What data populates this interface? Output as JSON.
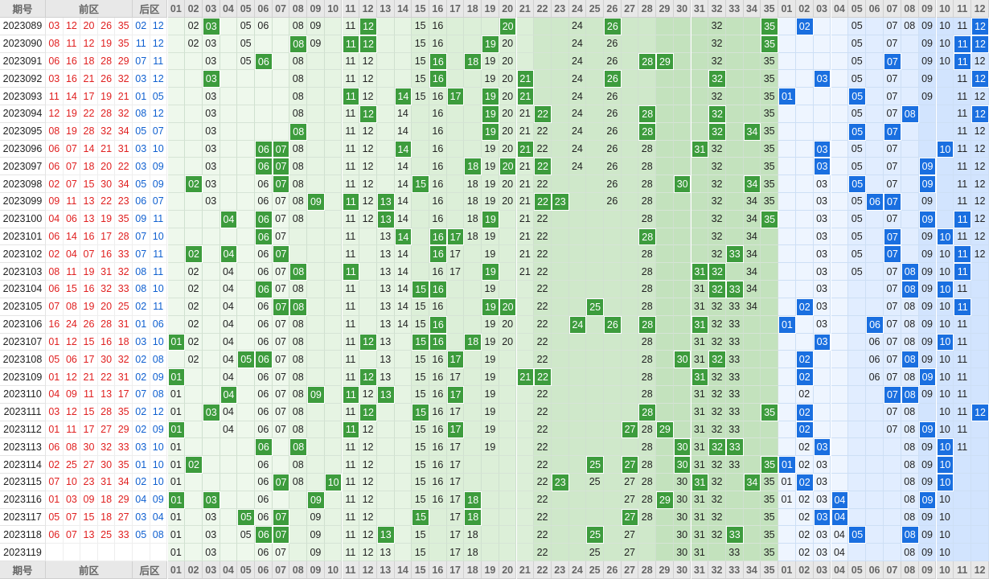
{
  "header": {
    "issue": "期号",
    "front": "前区",
    "back": "后区"
  },
  "front_columns": [
    "01",
    "02",
    "03",
    "04",
    "05",
    "06",
    "07",
    "08",
    "09",
    "10",
    "11",
    "12",
    "13",
    "14",
    "15",
    "16",
    "17",
    "18",
    "19",
    "20",
    "21",
    "22",
    "23",
    "24",
    "25",
    "26",
    "27",
    "28",
    "29",
    "30",
    "31",
    "32",
    "33",
    "34",
    "35"
  ],
  "back_columns": [
    "01",
    "02",
    "03",
    "04",
    "05",
    "06",
    "07",
    "08",
    "09",
    "10",
    "11",
    "12"
  ],
  "rows": [
    {
      "issue": "2023089",
      "front": [
        "03",
        "12",
        "20",
        "26",
        "35"
      ],
      "back": [
        "02",
        "12"
      ],
      "front_grid": [
        "02",
        "03",
        "05",
        "06",
        "08",
        "09",
        "11",
        "12",
        "15",
        "16",
        "20",
        "24",
        "26",
        "32",
        "35"
      ],
      "back_grid": [
        "02",
        "05",
        "07",
        "08",
        "09",
        "10",
        "11",
        "12"
      ]
    },
    {
      "issue": "2023090",
      "front": [
        "08",
        "11",
        "12",
        "19",
        "35"
      ],
      "back": [
        "11",
        "12"
      ],
      "front_grid": [
        "02",
        "03",
        "05",
        "08",
        "09",
        "11",
        "12",
        "15",
        "16",
        "19",
        "20",
        "24",
        "26",
        "32",
        "35"
      ],
      "back_grid": [
        "05",
        "07",
        "09",
        "10",
        "11",
        "12"
      ]
    },
    {
      "issue": "2023091",
      "front": [
        "06",
        "16",
        "18",
        "28",
        "29"
      ],
      "back": [
        "07",
        "11"
      ],
      "front_grid": [
        "03",
        "05",
        "06",
        "08",
        "11",
        "12",
        "15",
        "16",
        "18",
        "19",
        "20",
        "24",
        "26",
        "28",
        "29",
        "32",
        "35"
      ],
      "back_grid": [
        "05",
        "07",
        "09",
        "10",
        "11",
        "12"
      ]
    },
    {
      "issue": "2023092",
      "front": [
        "03",
        "16",
        "21",
        "26",
        "32"
      ],
      "back": [
        "03",
        "12"
      ],
      "front_grid": [
        "03",
        "08",
        "11",
        "12",
        "15",
        "16",
        "19",
        "20",
        "21",
        "24",
        "26",
        "32",
        "35"
      ],
      "back_grid": [
        "03",
        "05",
        "07",
        "09",
        "11",
        "12"
      ]
    },
    {
      "issue": "2023093",
      "front": [
        "11",
        "14",
        "17",
        "19",
        "21"
      ],
      "back": [
        "01",
        "05"
      ],
      "front_grid": [
        "03",
        "08",
        "11",
        "12",
        "14",
        "15",
        "16",
        "17",
        "19",
        "20",
        "21",
        "24",
        "26",
        "32",
        "35"
      ],
      "back_grid": [
        "01",
        "05",
        "07",
        "09",
        "11",
        "12"
      ]
    },
    {
      "issue": "2023094",
      "front": [
        "12",
        "19",
        "22",
        "28",
        "32"
      ],
      "back": [
        "08",
        "12"
      ],
      "front_grid": [
        "03",
        "08",
        "11",
        "12",
        "14",
        "16",
        "19",
        "20",
        "21",
        "22",
        "24",
        "26",
        "28",
        "32",
        "35"
      ],
      "back_grid": [
        "05",
        "07",
        "08",
        "11",
        "12"
      ]
    },
    {
      "issue": "2023095",
      "front": [
        "08",
        "19",
        "28",
        "32",
        "34"
      ],
      "back": [
        "05",
        "07"
      ],
      "front_grid": [
        "03",
        "08",
        "11",
        "12",
        "14",
        "16",
        "19",
        "20",
        "21",
        "22",
        "24",
        "26",
        "28",
        "32",
        "34",
        "35"
      ],
      "back_grid": [
        "05",
        "07",
        "11",
        "12"
      ]
    },
    {
      "issue": "2023096",
      "front": [
        "06",
        "07",
        "14",
        "21",
        "31"
      ],
      "back": [
        "03",
        "10"
      ],
      "front_grid": [
        "03",
        "06",
        "07",
        "08",
        "11",
        "12",
        "14",
        "16",
        "19",
        "20",
        "21",
        "22",
        "24",
        "26",
        "28",
        "31",
        "32",
        "35"
      ],
      "back_grid": [
        "03",
        "05",
        "07",
        "10",
        "11",
        "12"
      ]
    },
    {
      "issue": "2023097",
      "front": [
        "06",
        "07",
        "18",
        "20",
        "22"
      ],
      "back": [
        "03",
        "09"
      ],
      "front_grid": [
        "03",
        "06",
        "07",
        "08",
        "11",
        "12",
        "14",
        "16",
        "18",
        "19",
        "20",
        "21",
        "22",
        "24",
        "26",
        "28",
        "32",
        "35"
      ],
      "back_grid": [
        "03",
        "05",
        "07",
        "09",
        "11",
        "12"
      ]
    },
    {
      "issue": "2023098",
      "front": [
        "02",
        "07",
        "15",
        "30",
        "34"
      ],
      "back": [
        "05",
        "09"
      ],
      "front_grid": [
        "02",
        "03",
        "06",
        "07",
        "08",
        "11",
        "12",
        "14",
        "15",
        "16",
        "18",
        "19",
        "20",
        "21",
        "22",
        "26",
        "28",
        "30",
        "32",
        "34",
        "35"
      ],
      "back_grid": [
        "03",
        "05",
        "07",
        "09",
        "11",
        "12"
      ]
    },
    {
      "issue": "2023099",
      "front": [
        "09",
        "11",
        "13",
        "22",
        "23"
      ],
      "back": [
        "06",
        "07"
      ],
      "front_grid": [
        "03",
        "06",
        "07",
        "08",
        "09",
        "11",
        "12",
        "13",
        "14",
        "16",
        "18",
        "19",
        "20",
        "21",
        "22",
        "23",
        "26",
        "28",
        "32",
        "34",
        "35"
      ],
      "back_grid": [
        "03",
        "05",
        "06",
        "07",
        "09",
        "11",
        "12"
      ]
    },
    {
      "issue": "2023100",
      "front": [
        "04",
        "06",
        "13",
        "19",
        "35"
      ],
      "back": [
        "09",
        "11"
      ],
      "front_grid": [
        "04",
        "06",
        "07",
        "08",
        "11",
        "12",
        "13",
        "14",
        "16",
        "18",
        "19",
        "21",
        "22",
        "28",
        "32",
        "34",
        "35"
      ],
      "back_grid": [
        "03",
        "05",
        "07",
        "09",
        "11",
        "12"
      ]
    },
    {
      "issue": "2023101",
      "front": [
        "06",
        "14",
        "16",
        "17",
        "28"
      ],
      "back": [
        "07",
        "10"
      ],
      "front_grid": [
        "06",
        "07",
        "11",
        "13",
        "14",
        "16",
        "17",
        "18",
        "19",
        "21",
        "22",
        "28",
        "32",
        "34"
      ],
      "back_grid": [
        "03",
        "05",
        "07",
        "09",
        "10",
        "11",
        "12"
      ]
    },
    {
      "issue": "2023102",
      "front": [
        "02",
        "04",
        "07",
        "16",
        "33"
      ],
      "back": [
        "07",
        "11"
      ],
      "front_grid": [
        "02",
        "04",
        "06",
        "07",
        "11",
        "13",
        "14",
        "16",
        "17",
        "19",
        "21",
        "22",
        "28",
        "32",
        "33",
        "34"
      ],
      "back_grid": [
        "03",
        "05",
        "07",
        "09",
        "10",
        "11",
        "12"
      ]
    },
    {
      "issue": "2023103",
      "front": [
        "08",
        "11",
        "19",
        "31",
        "32"
      ],
      "back": [
        "08",
        "11"
      ],
      "front_grid": [
        "02",
        "04",
        "06",
        "07",
        "08",
        "11",
        "13",
        "14",
        "16",
        "17",
        "19",
        "21",
        "22",
        "28",
        "31",
        "32",
        "34"
      ],
      "back_grid": [
        "03",
        "05",
        "07",
        "08",
        "09",
        "10",
        "11"
      ]
    },
    {
      "issue": "2023104",
      "front": [
        "06",
        "15",
        "16",
        "32",
        "33"
      ],
      "back": [
        "08",
        "10"
      ],
      "front_grid": [
        "02",
        "04",
        "06",
        "07",
        "08",
        "11",
        "13",
        "14",
        "15",
        "16",
        "19",
        "22",
        "28",
        "31",
        "32",
        "33",
        "34"
      ],
      "back_grid": [
        "03",
        "07",
        "08",
        "09",
        "10",
        "11"
      ]
    },
    {
      "issue": "2023105",
      "front": [
        "07",
        "08",
        "19",
        "20",
        "25"
      ],
      "back": [
        "02",
        "11"
      ],
      "front_grid": [
        "02",
        "04",
        "06",
        "07",
        "08",
        "11",
        "13",
        "14",
        "15",
        "16",
        "19",
        "20",
        "22",
        "25",
        "28",
        "31",
        "32",
        "33",
        "34"
      ],
      "back_grid": [
        "02",
        "03",
        "07",
        "08",
        "09",
        "10",
        "11"
      ]
    },
    {
      "issue": "2023106",
      "front": [
        "16",
        "24",
        "26",
        "28",
        "31"
      ],
      "back": [
        "01",
        "06"
      ],
      "front_grid": [
        "02",
        "04",
        "06",
        "07",
        "08",
        "11",
        "13",
        "14",
        "15",
        "16",
        "19",
        "20",
        "22",
        "24",
        "26",
        "28",
        "31",
        "32",
        "33"
      ],
      "back_grid": [
        "01",
        "03",
        "06",
        "07",
        "08",
        "09",
        "10",
        "11"
      ]
    },
    {
      "issue": "2023107",
      "front": [
        "01",
        "12",
        "15",
        "16",
        "18"
      ],
      "back": [
        "03",
        "10"
      ],
      "front_grid": [
        "01",
        "02",
        "04",
        "06",
        "07",
        "08",
        "11",
        "12",
        "13",
        "15",
        "16",
        "18",
        "19",
        "20",
        "22",
        "28",
        "31",
        "32",
        "33"
      ],
      "back_grid": [
        "03",
        "06",
        "07",
        "08",
        "09",
        "10",
        "11"
      ]
    },
    {
      "issue": "2023108",
      "front": [
        "05",
        "06",
        "17",
        "30",
        "32"
      ],
      "back": [
        "02",
        "08"
      ],
      "front_grid": [
        "02",
        "04",
        "05",
        "06",
        "07",
        "08",
        "11",
        "13",
        "15",
        "16",
        "17",
        "19",
        "22",
        "28",
        "30",
        "31",
        "32",
        "33"
      ],
      "back_grid": [
        "02",
        "06",
        "07",
        "08",
        "09",
        "10",
        "11"
      ]
    },
    {
      "issue": "2023109",
      "front": [
        "01",
        "12",
        "21",
        "22",
        "31"
      ],
      "back": [
        "02",
        "09"
      ],
      "front_grid": [
        "01",
        "04",
        "06",
        "07",
        "08",
        "11",
        "12",
        "13",
        "15",
        "16",
        "17",
        "19",
        "21",
        "22",
        "28",
        "31",
        "32",
        "33"
      ],
      "back_grid": [
        "02",
        "06",
        "07",
        "08",
        "09",
        "10",
        "11"
      ]
    },
    {
      "issue": "2023110",
      "front": [
        "04",
        "09",
        "11",
        "13",
        "17"
      ],
      "back": [
        "07",
        "08"
      ],
      "front_grid": [
        "01",
        "04",
        "06",
        "07",
        "08",
        "09",
        "11",
        "12",
        "13",
        "15",
        "16",
        "17",
        "19",
        "22",
        "28",
        "31",
        "32",
        "33"
      ],
      "back_grid": [
        "02",
        "07",
        "08",
        "09",
        "10",
        "11"
      ]
    },
    {
      "issue": "2023111",
      "front": [
        "03",
        "12",
        "15",
        "28",
        "35"
      ],
      "back": [
        "02",
        "12"
      ],
      "front_grid": [
        "01",
        "03",
        "04",
        "06",
        "07",
        "08",
        "11",
        "12",
        "15",
        "16",
        "17",
        "19",
        "22",
        "28",
        "31",
        "32",
        "33",
        "35"
      ],
      "back_grid": [
        "02",
        "07",
        "08",
        "10",
        "11",
        "12"
      ]
    },
    {
      "issue": "2023112",
      "front": [
        "01",
        "11",
        "17",
        "27",
        "29"
      ],
      "back": [
        "02",
        "09"
      ],
      "front_grid": [
        "01",
        "04",
        "06",
        "07",
        "08",
        "11",
        "12",
        "15",
        "16",
        "17",
        "19",
        "22",
        "27",
        "28",
        "29",
        "31",
        "32",
        "33"
      ],
      "back_grid": [
        "02",
        "07",
        "08",
        "09",
        "10",
        "11"
      ]
    },
    {
      "issue": "2023113",
      "front": [
        "06",
        "08",
        "30",
        "32",
        "33"
      ],
      "back": [
        "03",
        "10"
      ],
      "front_grid": [
        "01",
        "06",
        "08",
        "11",
        "12",
        "15",
        "16",
        "17",
        "19",
        "22",
        "28",
        "30",
        "31",
        "32",
        "33"
      ],
      "back_grid": [
        "02",
        "03",
        "08",
        "09",
        "10",
        "11"
      ]
    },
    {
      "issue": "2023114",
      "front": [
        "02",
        "25",
        "27",
        "30",
        "35"
      ],
      "back": [
        "01",
        "10"
      ],
      "front_grid": [
        "01",
        "02",
        "06",
        "08",
        "11",
        "12",
        "15",
        "16",
        "17",
        "22",
        "25",
        "27",
        "28",
        "30",
        "31",
        "32",
        "33",
        "35"
      ],
      "back_grid": [
        "01",
        "02",
        "03",
        "08",
        "09",
        "10"
      ]
    },
    {
      "issue": "2023115",
      "front": [
        "07",
        "10",
        "23",
        "31",
        "34"
      ],
      "back": [
        "02",
        "10"
      ],
      "front_grid": [
        "01",
        "06",
        "07",
        "08",
        "10",
        "11",
        "12",
        "15",
        "16",
        "17",
        "22",
        "23",
        "25",
        "27",
        "28",
        "30",
        "31",
        "32",
        "34",
        "35"
      ],
      "back_grid": [
        "01",
        "02",
        "03",
        "08",
        "09",
        "10"
      ]
    },
    {
      "issue": "2023116",
      "front": [
        "01",
        "03",
        "09",
        "18",
        "29"
      ],
      "back": [
        "04",
        "09"
      ],
      "front_grid": [
        "01",
        "03",
        "06",
        "09",
        "11",
        "12",
        "15",
        "16",
        "17",
        "18",
        "22",
        "27",
        "28",
        "29",
        "30",
        "31",
        "32",
        "35"
      ],
      "back_grid": [
        "01",
        "02",
        "03",
        "04",
        "08",
        "09",
        "10"
      ]
    },
    {
      "issue": "2023117",
      "front": [
        "05",
        "07",
        "15",
        "18",
        "27"
      ],
      "back": [
        "03",
        "04"
      ],
      "front_grid": [
        "01",
        "03",
        "05",
        "06",
        "07",
        "09",
        "11",
        "12",
        "15",
        "17",
        "18",
        "22",
        "27",
        "28",
        "30",
        "31",
        "32",
        "35"
      ],
      "back_grid": [
        "02",
        "03",
        "04",
        "08",
        "09",
        "10"
      ]
    },
    {
      "issue": "2023118",
      "front": [
        "06",
        "07",
        "13",
        "25",
        "33"
      ],
      "back": [
        "05",
        "08"
      ],
      "front_grid": [
        "01",
        "03",
        "05",
        "06",
        "07",
        "09",
        "11",
        "12",
        "13",
        "15",
        "17",
        "18",
        "22",
        "25",
        "27",
        "30",
        "31",
        "32",
        "33",
        "35"
      ],
      "back_grid": [
        "02",
        "03",
        "04",
        "05",
        "08",
        "09",
        "10"
      ]
    },
    {
      "issue": "2023119",
      "front_grid": [
        "01",
        "03",
        "06",
        "07",
        "09",
        "11",
        "12",
        "13",
        "15",
        "17",
        "18",
        "22",
        "25",
        "27",
        "30",
        "31",
        "33",
        "35"
      ],
      "back_grid": [
        "02",
        "03",
        "04",
        "08",
        "09",
        "10"
      ]
    }
  ]
}
